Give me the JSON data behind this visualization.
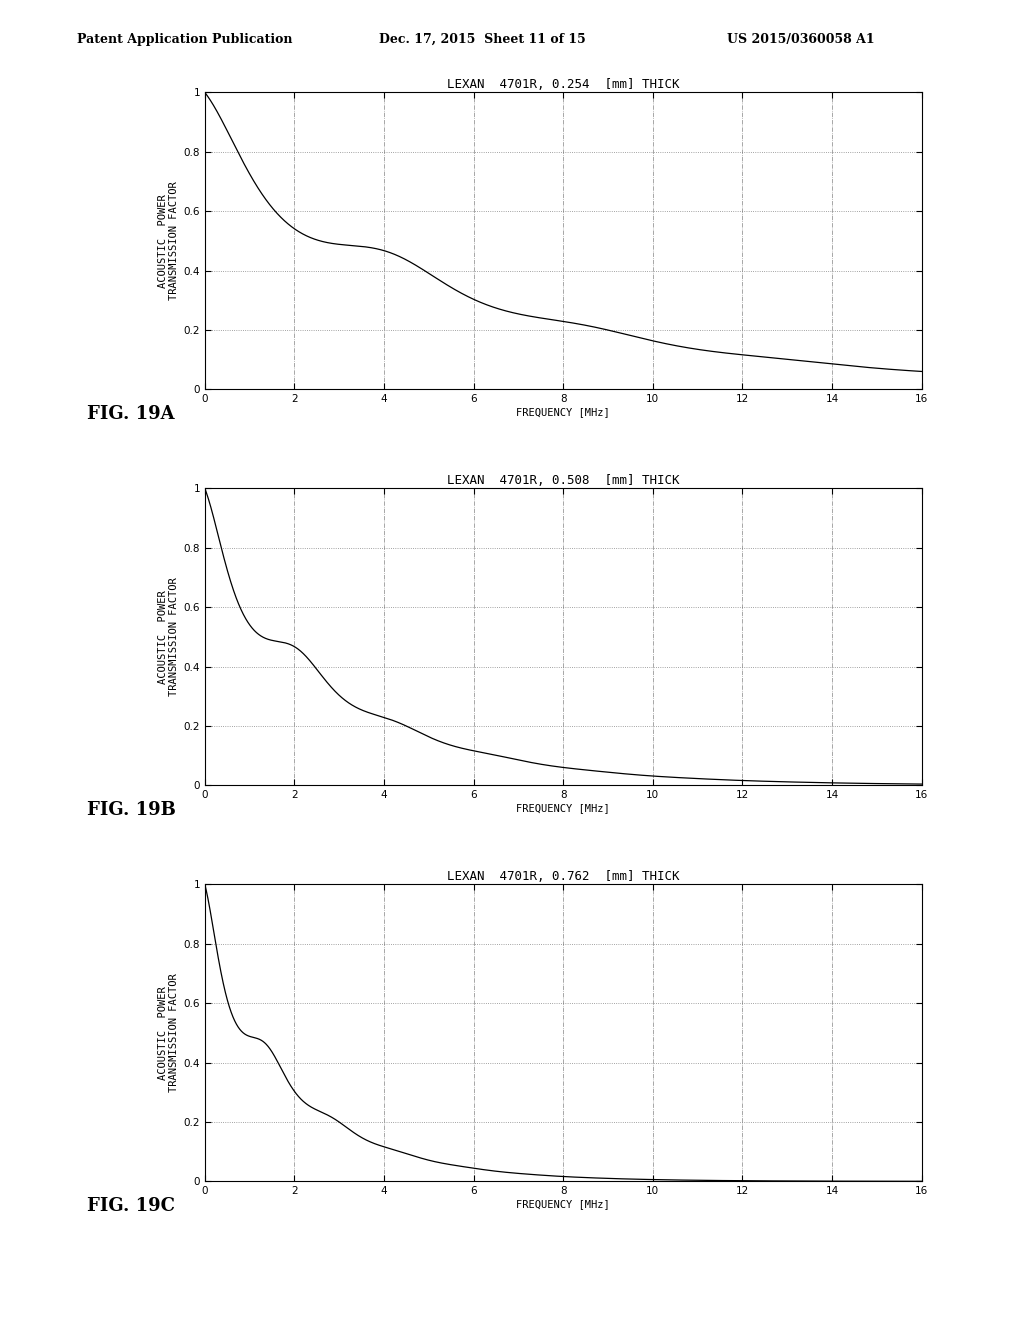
{
  "header_left": "Patent Application Publication",
  "header_mid": "Dec. 17, 2015  Sheet 11 of 15",
  "header_right": "US 2015/0360058 A1",
  "plots": [
    {
      "title": "LEXAN  4701R, 0.254  [mm] THICK",
      "thickness_mm": 0.254,
      "fig_label": "FIG. 19A"
    },
    {
      "title": "LEXAN  4701R, 0.508  [mm] THICK",
      "thickness_mm": 0.508,
      "fig_label": "FIG. 19B"
    },
    {
      "title": "LEXAN  4701R, 0.762  [mm] THICK",
      "thickness_mm": 0.762,
      "fig_label": "FIG. 19C"
    }
  ],
  "xlabel": "FREQUENCY [MHz]",
  "ylabel_line1": "ACOUSTIC  POWER",
  "ylabel_line2": "TRANSMISSION FACTOR",
  "freq_min": 0,
  "freq_max": 16,
  "yticks": [
    0,
    0.2,
    0.4,
    0.6,
    0.8,
    1
  ],
  "xticks": [
    0,
    2,
    4,
    6,
    8,
    10,
    12,
    14,
    16
  ],
  "background_color": "#ffffff",
  "line_color": "#000000",
  "grid_color": "#777777",
  "title_fontsize": 9,
  "axis_label_fontsize": 7.5,
  "tick_fontsize": 7.5,
  "header_fontsize": 9,
  "fig_label_fontsize": 13,
  "rho_water": 1000,
  "c_water": 1500,
  "rho_lexan": 1200,
  "c_lexan": 2270,
  "attenuation_db_per_mm_per_MHz": 2.8
}
